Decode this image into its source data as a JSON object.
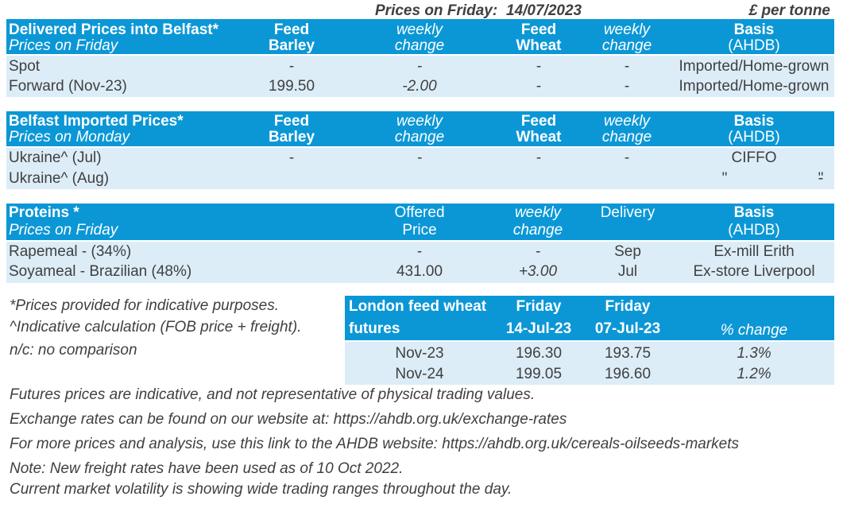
{
  "top": {
    "label": "Prices on Friday:",
    "date": "14/07/2023",
    "unit": "£ per tonne"
  },
  "delivered": {
    "title": "Delivered Prices into Belfast*",
    "subtitle": "Prices on Friday",
    "columns": [
      [
        "Feed",
        "Barley"
      ],
      [
        "weekly",
        "change"
      ],
      [
        "Feed",
        "Wheat"
      ],
      [
        "weekly",
        "change"
      ],
      [
        "Basis",
        "(AHDB)"
      ]
    ],
    "rows": [
      [
        "Spot",
        "-",
        "-",
        "-",
        "-",
        "Imported/Home-grown"
      ],
      [
        "Forward (Nov-23)",
        "199.50",
        "-2.00",
        "-",
        "-",
        "Imported/Home-grown"
      ]
    ]
  },
  "imported": {
    "title": "Belfast Imported Prices*",
    "subtitle": "Prices on Monday",
    "columns": [
      [
        "Feed",
        "Barley"
      ],
      [
        "weekly",
        "change"
      ],
      [
        "Feed",
        "Wheat"
      ],
      [
        "weekly",
        "change"
      ],
      [
        "Basis",
        "(AHDB)"
      ]
    ],
    "rows": [
      [
        "Ukraine^ (Jul)",
        "-",
        "-",
        "-",
        "-",
        "CIFFO"
      ],
      [
        "Ukraine^ (Aug)",
        "-",
        "-",
        "-",
        "-",
        "\"",
        "\""
      ]
    ]
  },
  "proteins": {
    "title": "Proteins *",
    "subtitle": "Prices on Friday",
    "columns": [
      [
        "Offered",
        "Price"
      ],
      [
        "weekly",
        "change"
      ],
      [
        "Delivery"
      ],
      [
        "Basis",
        "(AHDB)"
      ]
    ],
    "rows": [
      [
        "Rapemeal - (34%)",
        "-",
        "-",
        "Sep",
        "Ex-mill Erith"
      ],
      [
        "Soyameal - Brazilian (48%)",
        "431.00",
        "+3.00",
        "Jul",
        "Ex-store Liverpool"
      ]
    ]
  },
  "footnotes": [
    "*Prices provided for indicative purposes.",
    "^Indicative calculation (FOB price + freight).",
    "n/c: no comparison"
  ],
  "futures": {
    "title": [
      "London feed wheat",
      "futures"
    ],
    "columns": [
      [
        "Friday",
        "14-Jul-23"
      ],
      [
        "Friday",
        "07-Jul-23"
      ],
      [
        "% change"
      ]
    ],
    "rows": [
      [
        "Nov-23",
        "196.30",
        "193.75",
        "1.3%"
      ],
      [
        "Nov-24",
        "199.05",
        "196.60",
        "1.2%"
      ]
    ]
  },
  "notes": [
    "Futures prices are indicative, and not representative of physical trading values.",
    "Exchange rates can be found on our website at: https://ahdb.org.uk/exchange-rates",
    "For more prices and analysis, use this link to the AHDB website: https://ahdb.org.uk/cereals-oilseeds-markets",
    "Note: New freight rates have been used as of 10 Oct 2022.",
    "Current market volatility is showing wide trading ranges throughout the day."
  ]
}
